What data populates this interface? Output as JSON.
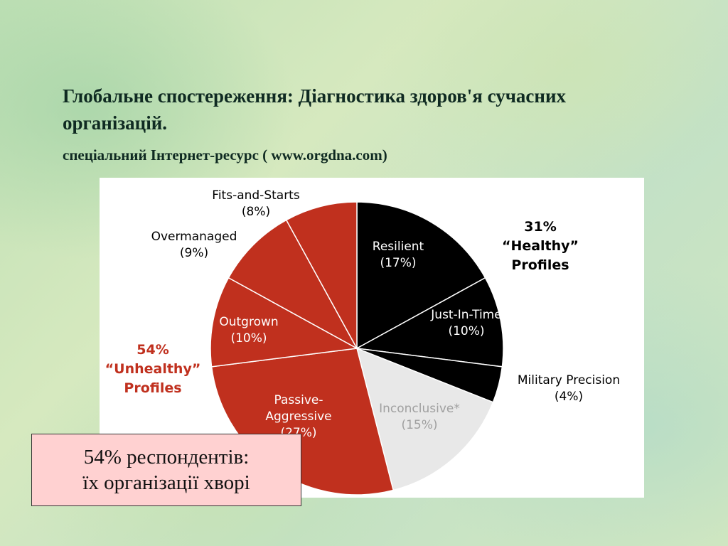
{
  "slide": {
    "title": "Глобальне спостереження: Діагностика здоров'я сучасних організацій.",
    "subtitle": "спеціальний Інтернет-ресурс  ( www.orgdna.com)",
    "note_line1": "54% респондентів:",
    "note_line2": "їх організації хворі"
  },
  "chart_data": {
    "type": "pie",
    "slices": [
      {
        "label": "Resilient",
        "value_label": "(17%)",
        "value": 17,
        "color": "#000000",
        "text_color": "#ffffff"
      },
      {
        "label": "Just-In-Time",
        "value_label": "(10%)",
        "value": 10,
        "color": "#000000",
        "text_color": "#ffffff"
      },
      {
        "label": "Military Precision",
        "value_label": "(4%)",
        "value": 4,
        "color": "#000000",
        "text_color": "#000000"
      },
      {
        "label": "Inconclusive*",
        "value_label": "(15%)",
        "value": 15,
        "color": "#e8e8e8",
        "text_color": "#a0a0a0"
      },
      {
        "label": "Passive-Aggressive",
        "label_lines": [
          "Passive-",
          "Aggressive"
        ],
        "value_label": "(27%)",
        "value": 27,
        "color": "#c0301e",
        "text_color": "#ffffff"
      },
      {
        "label": "Outgrown",
        "value_label": "(10%)",
        "value": 10,
        "color": "#c0301e",
        "text_color": "#ffffff"
      },
      {
        "label": "Overmanaged",
        "value_label": "(9%)",
        "value": 9,
        "color": "#c0301e",
        "text_color": "#000000"
      },
      {
        "label": "Fits-and-Starts",
        "value_label": "(8%)",
        "value": 8,
        "color": "#c0301e",
        "text_color": "#000000"
      }
    ],
    "groups": [
      {
        "percent": "31%",
        "lines": [
          "“Healthy”",
          "Profiles"
        ],
        "color": "#000000"
      },
      {
        "percent": "54%",
        "lines": [
          "“Unhealthy”",
          "Profiles"
        ],
        "color": "#c0301e"
      }
    ]
  }
}
